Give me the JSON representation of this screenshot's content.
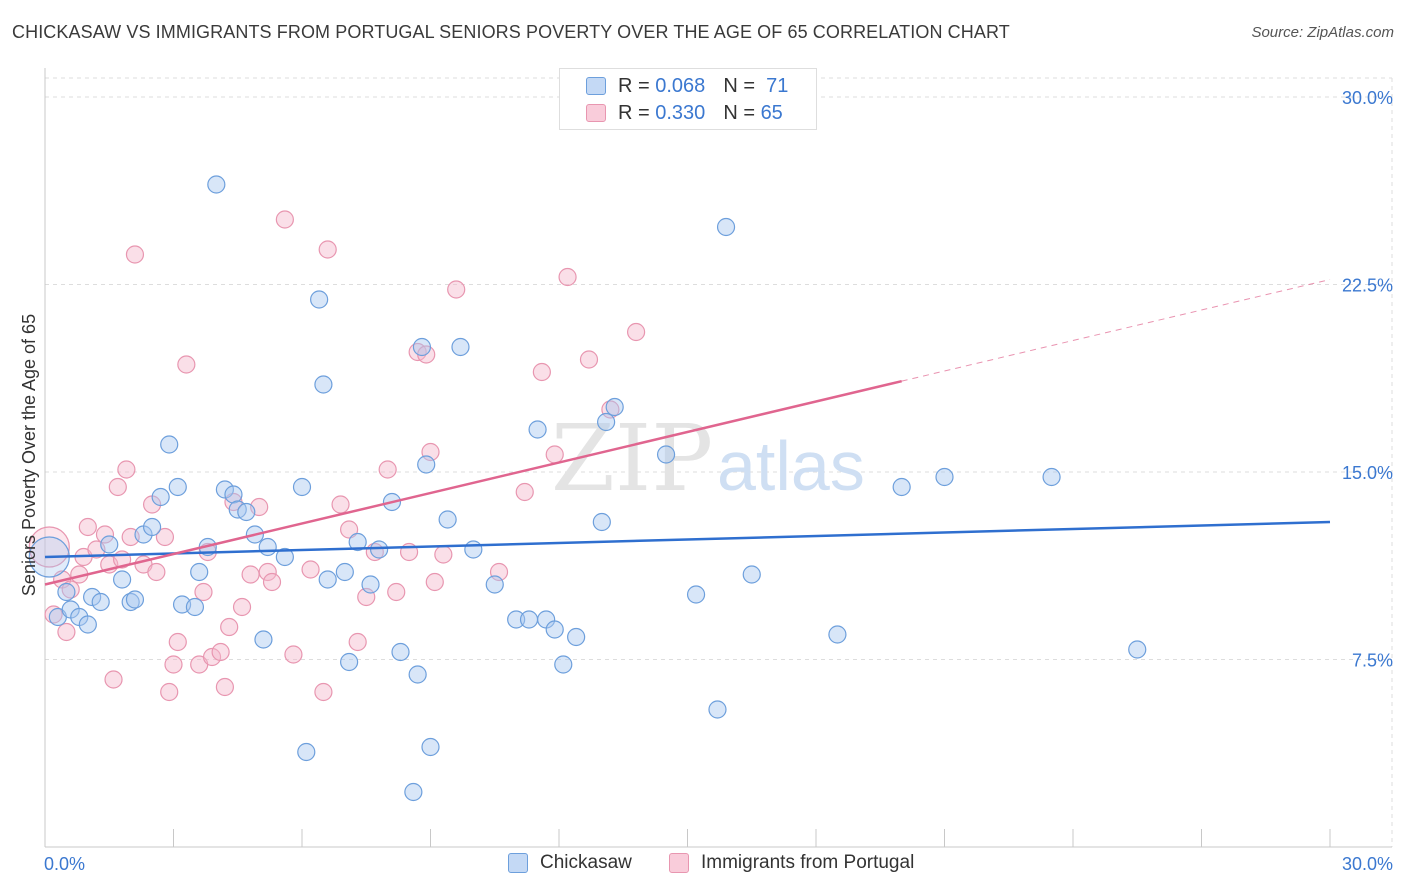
{
  "header": {
    "title": "CHICKASAW VS IMMIGRANTS FROM PORTUGAL SENIORS POVERTY OVER THE AGE OF 65 CORRELATION CHART",
    "source": "Source: ZipAtlas.com"
  },
  "watermark": {
    "part1": "ZIP",
    "part2": "atlas"
  },
  "legend_top": {
    "rows": [
      {
        "r_label": "R =",
        "r_value": "0.068",
        "n_label": "N =",
        "n_value": "71",
        "color": "#a9c8f0"
      },
      {
        "r_label": "R =",
        "r_value": "0.330",
        "n_label": "N =",
        "n_value": "65",
        "color": "#f5b8cb"
      }
    ]
  },
  "legend_bottom": [
    {
      "label": "Chickasaw",
      "color": "#a9c8f0"
    },
    {
      "label": "Immigrants from Portugal",
      "color": "#f5b8cb"
    }
  ],
  "colors": {
    "blue_fill": "#a9c8f0",
    "blue_stroke": "#6d9fdc",
    "blue_line": "#2f6fcf",
    "pink_fill": "#f5b8cb",
    "pink_stroke": "#e896b0",
    "pink_line": "#e0658f",
    "axis_text": "#3b78d0",
    "grid": "#dddddd"
  },
  "chart_data": {
    "type": "scatter",
    "title": "CHICKASAW VS IMMIGRANTS FROM PORTUGAL SENIORS POVERTY OVER THE AGE OF 65 CORRELATION CHART",
    "xlabel": "",
    "ylabel": "Seniors Poverty Over the Age of 65",
    "xlim": [
      0,
      30
    ],
    "ylim": [
      0,
      30
    ],
    "x_tick_labels": [
      "0.0%",
      "30.0%"
    ],
    "y_ticks": [
      7.5,
      15.0,
      22.5,
      30.0
    ],
    "y_tick_labels": [
      "7.5%",
      "15.0%",
      "22.5%",
      "30.0%"
    ],
    "grid": true,
    "legend_position": "top-center",
    "series": [
      {
        "name": "Chickasaw",
        "R": 0.068,
        "N": 71,
        "trend": {
          "x": [
            0,
            30
          ],
          "y": [
            11.6,
            13.0
          ],
          "dashed_from": null
        },
        "points": [
          [
            0.1,
            11.6
          ],
          [
            0.3,
            9.2
          ],
          [
            0.5,
            10.2
          ],
          [
            0.6,
            9.5
          ],
          [
            0.8,
            9.2
          ],
          [
            1.0,
            8.9
          ],
          [
            1.1,
            10.0
          ],
          [
            1.3,
            9.8
          ],
          [
            1.5,
            12.1
          ],
          [
            1.8,
            10.7
          ],
          [
            2.0,
            9.8
          ],
          [
            2.1,
            9.9
          ],
          [
            2.3,
            12.5
          ],
          [
            2.5,
            12.8
          ],
          [
            2.7,
            14.0
          ],
          [
            2.9,
            16.1
          ],
          [
            3.1,
            14.4
          ],
          [
            3.2,
            9.7
          ],
          [
            3.5,
            9.6
          ],
          [
            3.6,
            11.0
          ],
          [
            3.8,
            12.0
          ],
          [
            4.0,
            26.5
          ],
          [
            4.2,
            14.3
          ],
          [
            4.4,
            14.1
          ],
          [
            4.5,
            13.5
          ],
          [
            4.7,
            13.4
          ],
          [
            4.9,
            12.5
          ],
          [
            5.1,
            8.3
          ],
          [
            5.2,
            12.0
          ],
          [
            5.6,
            11.6
          ],
          [
            6.0,
            14.4
          ],
          [
            6.1,
            3.8
          ],
          [
            6.4,
            21.9
          ],
          [
            6.5,
            18.5
          ],
          [
            6.6,
            10.7
          ],
          [
            7.0,
            11.0
          ],
          [
            7.1,
            7.4
          ],
          [
            7.3,
            12.2
          ],
          [
            7.6,
            10.5
          ],
          [
            7.8,
            11.9
          ],
          [
            8.1,
            13.8
          ],
          [
            8.3,
            7.8
          ],
          [
            8.6,
            2.2
          ],
          [
            8.7,
            6.9
          ],
          [
            8.8,
            20.0
          ],
          [
            8.9,
            15.3
          ],
          [
            9.0,
            4.0
          ],
          [
            9.4,
            13.1
          ],
          [
            9.7,
            20.0
          ],
          [
            10.0,
            11.9
          ],
          [
            10.5,
            10.5
          ],
          [
            11.0,
            9.1
          ],
          [
            11.3,
            9.1
          ],
          [
            11.5,
            16.7
          ],
          [
            11.7,
            9.1
          ],
          [
            11.9,
            8.7
          ],
          [
            12.1,
            7.3
          ],
          [
            12.4,
            8.4
          ],
          [
            13.0,
            13.0
          ],
          [
            13.1,
            17.0
          ],
          [
            13.3,
            17.6
          ],
          [
            14.5,
            15.7
          ],
          [
            15.2,
            10.1
          ],
          [
            15.7,
            5.5
          ],
          [
            15.9,
            24.8
          ],
          [
            16.5,
            10.9
          ],
          [
            18.5,
            8.5
          ],
          [
            20.0,
            14.4
          ],
          [
            21.0,
            14.8
          ],
          [
            23.5,
            14.8
          ],
          [
            25.5,
            7.9
          ]
        ]
      },
      {
        "name": "Immigrants from Portugal",
        "R": 0.33,
        "N": 65,
        "trend": {
          "x": [
            0,
            30
          ],
          "y": [
            10.5,
            22.7
          ],
          "dashed_from": 20.0
        },
        "points": [
          [
            0.1,
            12.0
          ],
          [
            0.2,
            9.3
          ],
          [
            0.4,
            10.7
          ],
          [
            0.5,
            8.6
          ],
          [
            0.6,
            10.3
          ],
          [
            0.8,
            10.9
          ],
          [
            0.9,
            11.6
          ],
          [
            1.0,
            12.8
          ],
          [
            1.2,
            11.9
          ],
          [
            1.4,
            12.5
          ],
          [
            1.5,
            11.3
          ],
          [
            1.6,
            6.7
          ],
          [
            1.7,
            14.4
          ],
          [
            1.8,
            11.5
          ],
          [
            1.9,
            15.1
          ],
          [
            2.0,
            12.4
          ],
          [
            2.1,
            23.7
          ],
          [
            2.3,
            11.3
          ],
          [
            2.5,
            13.7
          ],
          [
            2.6,
            11.0
          ],
          [
            2.8,
            12.4
          ],
          [
            2.9,
            6.2
          ],
          [
            3.0,
            7.3
          ],
          [
            3.1,
            8.2
          ],
          [
            3.3,
            19.3
          ],
          [
            3.6,
            7.3
          ],
          [
            3.7,
            10.2
          ],
          [
            3.8,
            11.8
          ],
          [
            3.9,
            7.6
          ],
          [
            4.1,
            7.8
          ],
          [
            4.2,
            6.4
          ],
          [
            4.3,
            8.8
          ],
          [
            4.4,
            13.8
          ],
          [
            4.6,
            9.6
          ],
          [
            4.8,
            10.9
          ],
          [
            5.0,
            13.6
          ],
          [
            5.2,
            11.0
          ],
          [
            5.3,
            10.6
          ],
          [
            5.6,
            25.1
          ],
          [
            5.8,
            7.7
          ],
          [
            6.2,
            11.1
          ],
          [
            6.5,
            6.2
          ],
          [
            6.6,
            23.9
          ],
          [
            6.9,
            13.7
          ],
          [
            7.1,
            12.7
          ],
          [
            7.3,
            8.2
          ],
          [
            7.5,
            10.0
          ],
          [
            7.7,
            11.8
          ],
          [
            8.0,
            15.1
          ],
          [
            8.2,
            10.2
          ],
          [
            8.5,
            11.8
          ],
          [
            8.7,
            19.8
          ],
          [
            8.9,
            19.7
          ],
          [
            9.0,
            15.8
          ],
          [
            9.1,
            10.6
          ],
          [
            9.3,
            11.7
          ],
          [
            9.6,
            22.3
          ],
          [
            10.6,
            11.0
          ],
          [
            11.2,
            14.2
          ],
          [
            11.6,
            19.0
          ],
          [
            11.9,
            15.7
          ],
          [
            12.2,
            22.8
          ],
          [
            12.7,
            19.5
          ],
          [
            13.2,
            17.5
          ],
          [
            13.8,
            20.6
          ]
        ]
      }
    ]
  }
}
